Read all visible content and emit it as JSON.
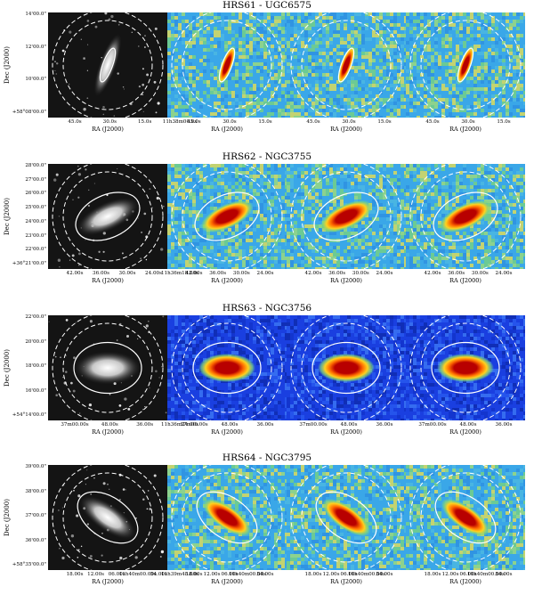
{
  "figure": {
    "rows": [
      {
        "title": "HRS61 - UGC6575",
        "ylabel": "Dec (J2000)",
        "yticks": [
          "14'00.0\"",
          "12'00.0\"",
          "10'00.0\"",
          "+58°08'00.0\""
        ],
        "xticks_first": [
          "45.0s",
          "30.0s",
          "15.0s",
          "11h38m00.0s"
        ],
        "xticks_other": [
          "45.0s",
          "30.0s",
          "15.0s"
        ],
        "xlabel": "RA (J2000)",
        "galaxy": {
          "tilt_deg": -70,
          "axis_ratio": 0.25,
          "colorscale": "heat"
        }
      },
      {
        "title": "HRS62 - NGC3755",
        "ylabel": "Dec (J2000)",
        "yticks": [
          "28'00.0\"",
          "27'00.0\"",
          "26'00.0\"",
          "25'00.0\"",
          "24'00.0\"",
          "23'00.0\"",
          "22'00.0\"",
          "+36°21'00.0\""
        ],
        "xticks_first": [
          "42.00s",
          "36.00s",
          "30.00s",
          "24.00s",
          "11h36m18.00s"
        ],
        "xticks_other": [
          "42.00s",
          "36.00s",
          "30.00s",
          "24.00s"
        ],
        "xlabel": "RA (J2000)",
        "galaxy": {
          "tilt_deg": -25,
          "axis_ratio": 0.42,
          "colorscale": "heat"
        }
      },
      {
        "title": "HRS63 - NGC3756",
        "ylabel": "Dec (J2000)",
        "yticks": [
          "22'00.0\"",
          "20'00.0\"",
          "18'00.0\"",
          "16'00.0\"",
          "+54°14'00.0\""
        ],
        "xticks_first": [
          "37m00.00s",
          "48.00s",
          "36.00s",
          "11h36m24.00s"
        ],
        "xticks_other": [
          "37m00.00s",
          "48.00s",
          "36.00s"
        ],
        "xlabel": "RA (J2000)",
        "galaxy": {
          "tilt_deg": 0,
          "axis_ratio": 0.5,
          "colorscale": "cool"
        }
      },
      {
        "title": "HRS64 - NGC3795",
        "ylabel": "Dec (J2000)",
        "yticks": [
          "39'00.0\"",
          "38'00.0\"",
          "37'00.0\"",
          "36'00.0\"",
          "+58°35'00.0\""
        ],
        "xticks_first": [
          "18.00s",
          "12.00s",
          "06.00s",
          "11h40m00.00s",
          "54.00s",
          "11h39m48.00s"
        ],
        "xticks_other": [
          "18.00s",
          "12.00s",
          "06.00s",
          "11h40m00.00s",
          "54.00s"
        ],
        "xlabel": "RA (J2000)",
        "galaxy": {
          "tilt_deg": 35,
          "axis_ratio": 0.4,
          "colorscale": "heat"
        }
      }
    ],
    "colors": {
      "heat_bg": "#3aa7e8",
      "cool_bg": "#1a3fe0",
      "core": "#b80000",
      "halo": "#ffd21e",
      "green": "#7cd67a"
    }
  }
}
